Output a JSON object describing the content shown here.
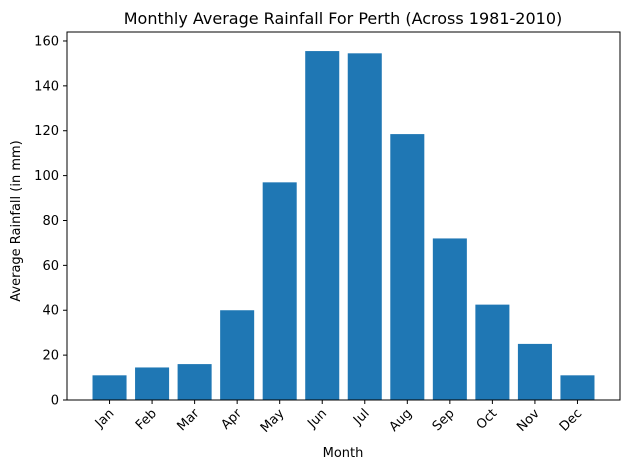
{
  "chart_data": {
    "type": "bar",
    "title": "Monthly Average Rainfall For Perth (Across 1981-2010)",
    "xlabel": "Month",
    "ylabel": "Average Rainfall (in mm)",
    "categories": [
      "Jan",
      "Feb",
      "Mar",
      "Apr",
      "May",
      "Jun",
      "Jul",
      "Aug",
      "Sep",
      "Oct",
      "Nov",
      "Dec"
    ],
    "values": [
      11,
      14.5,
      16,
      40,
      97,
      155.5,
      154.5,
      118.5,
      72,
      42.5,
      25,
      11
    ],
    "ylim": [
      0,
      164
    ],
    "yticks": [
      0,
      20,
      40,
      60,
      80,
      100,
      120,
      140,
      160
    ],
    "grid": false,
    "legend": "none",
    "bar_color": "#1f77b4",
    "axis_color": "#000000",
    "x_tick_rotation_deg": 45
  }
}
